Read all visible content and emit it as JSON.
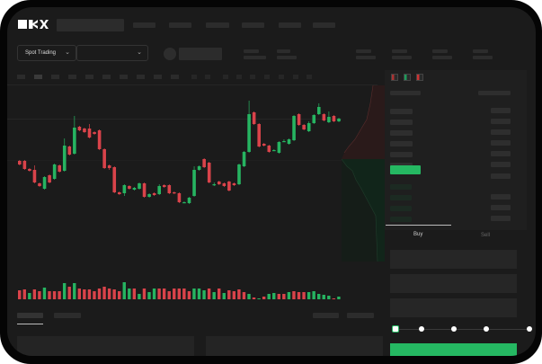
{
  "header": {
    "logo": "OKX"
  },
  "toolbar": {
    "market_select": "Spot Trading",
    "pair_select": ""
  },
  "colors": {
    "up": "#26b461",
    "down": "#d9434a",
    "accent": "#25b862",
    "background": "#1b1b1b"
  },
  "order_panel": {
    "tabs": [
      {
        "label": "Buy",
        "active": true
      },
      {
        "label": "Sell",
        "active": false
      }
    ],
    "leverage_slider": {
      "value": 0,
      "steps": 5
    }
  },
  "icons": [
    "chevron-down-icon",
    "orderbook-both-icon",
    "orderbook-bids-icon",
    "orderbook-asks-icon"
  ],
  "candles": {
    "ohlc": [
      [
        118,
        114,
        119,
        113
      ],
      [
        118,
        109,
        119,
        108
      ],
      [
        109,
        107,
        110,
        106
      ],
      [
        108,
        94,
        113,
        93
      ],
      [
        93,
        90,
        94,
        89
      ],
      [
        87,
        100,
        101,
        86
      ],
      [
        102,
        94,
        103,
        93
      ],
      [
        98,
        114,
        115,
        97
      ],
      [
        113,
        106,
        114,
        105
      ],
      [
        107,
        135,
        143,
        106
      ],
      [
        134,
        125,
        135,
        124
      ],
      [
        126,
        155,
        168,
        125
      ],
      [
        156,
        152,
        157,
        151
      ],
      [
        154,
        150,
        155,
        149
      ],
      [
        154,
        144,
        159,
        143
      ],
      [
        150,
        148,
        151,
        147
      ],
      [
        152,
        131,
        153,
        130
      ],
      [
        131,
        110,
        132,
        109
      ],
      [
        113,
        110,
        114,
        108
      ],
      [
        111,
        83,
        112,
        82
      ],
      [
        83,
        81,
        84,
        80
      ],
      [
        82,
        91,
        92,
        79
      ],
      [
        90,
        87,
        91,
        86
      ],
      [
        86,
        88,
        89,
        85
      ],
      [
        87,
        93,
        94,
        86
      ],
      [
        93,
        78,
        94,
        77
      ],
      [
        78,
        81,
        82,
        77
      ],
      [
        82,
        80,
        83,
        79
      ],
      [
        81,
        90,
        92,
        80
      ],
      [
        91,
        89,
        92,
        88
      ],
      [
        91,
        82,
        92,
        81
      ],
      [
        83,
        82,
        84,
        81
      ],
      [
        82,
        72,
        83,
        71
      ],
      [
        72,
        72,
        73,
        71
      ],
      [
        71,
        77,
        78,
        70
      ],
      [
        79,
        108,
        112,
        78
      ],
      [
        108,
        112,
        113,
        107
      ],
      [
        120,
        111,
        121,
        110
      ],
      [
        116,
        94,
        117,
        93
      ],
      [
        92,
        92,
        94,
        90
      ],
      [
        95,
        92,
        96,
        91
      ],
      [
        93,
        90,
        94,
        89
      ],
      [
        95,
        85,
        96,
        84
      ],
      [
        93,
        91,
        94,
        90
      ],
      [
        92,
        114,
        115,
        91
      ],
      [
        112,
        128,
        129,
        111
      ],
      [
        128,
        170,
        185,
        127
      ],
      [
        172,
        159,
        173,
        158
      ],
      [
        159,
        134,
        160,
        133
      ],
      [
        137,
        135,
        138,
        134
      ],
      [
        135,
        128,
        136,
        127
      ],
      [
        130,
        130,
        131,
        129
      ],
      [
        127,
        139,
        140,
        126
      ],
      [
        140,
        140,
        142,
        139
      ],
      [
        137,
        142,
        143,
        136
      ],
      [
        141,
        168,
        169,
        140
      ],
      [
        170,
        158,
        171,
        157
      ],
      [
        158,
        153,
        159,
        152
      ],
      [
        151,
        160,
        162,
        150
      ],
      [
        160,
        169,
        170,
        159
      ],
      [
        170,
        178,
        182,
        169
      ],
      [
        170,
        163,
        171,
        162
      ],
      [
        161,
        167,
        173,
        160
      ],
      [
        168,
        162,
        169,
        161
      ],
      [
        162,
        165,
        166,
        161
      ]
    ]
  },
  "volume": {
    "values": [
      10,
      11,
      7,
      11,
      9,
      13,
      9,
      9,
      9,
      18,
      14,
      18,
      12,
      11,
      11,
      9,
      12,
      14,
      12,
      11,
      9,
      19,
      12,
      12,
      6,
      12,
      8,
      12,
      12,
      12,
      9,
      12,
      12,
      12,
      9,
      12,
      12,
      10,
      12,
      8,
      12,
      7,
      10,
      9,
      11,
      8,
      6,
      2,
      1,
      3,
      6,
      7,
      6,
      6,
      8,
      9,
      8,
      8,
      8,
      9,
      6,
      5,
      4,
      1,
      3
    ],
    "up": [
      0,
      0,
      1,
      0,
      0,
      1,
      0,
      0,
      0,
      1,
      0,
      1,
      0,
      0,
      0,
      0,
      0,
      0,
      0,
      0,
      0,
      1,
      1,
      0,
      1,
      0,
      1,
      1,
      0,
      0,
      0,
      0,
      0,
      0,
      0,
      1,
      1,
      1,
      0,
      1,
      0,
      1,
      0,
      0,
      0,
      0,
      1,
      0,
      1,
      0,
      1,
      1,
      0,
      0,
      1,
      0,
      0,
      0,
      1,
      1,
      1,
      1,
      1,
      0,
      1
    ]
  }
}
